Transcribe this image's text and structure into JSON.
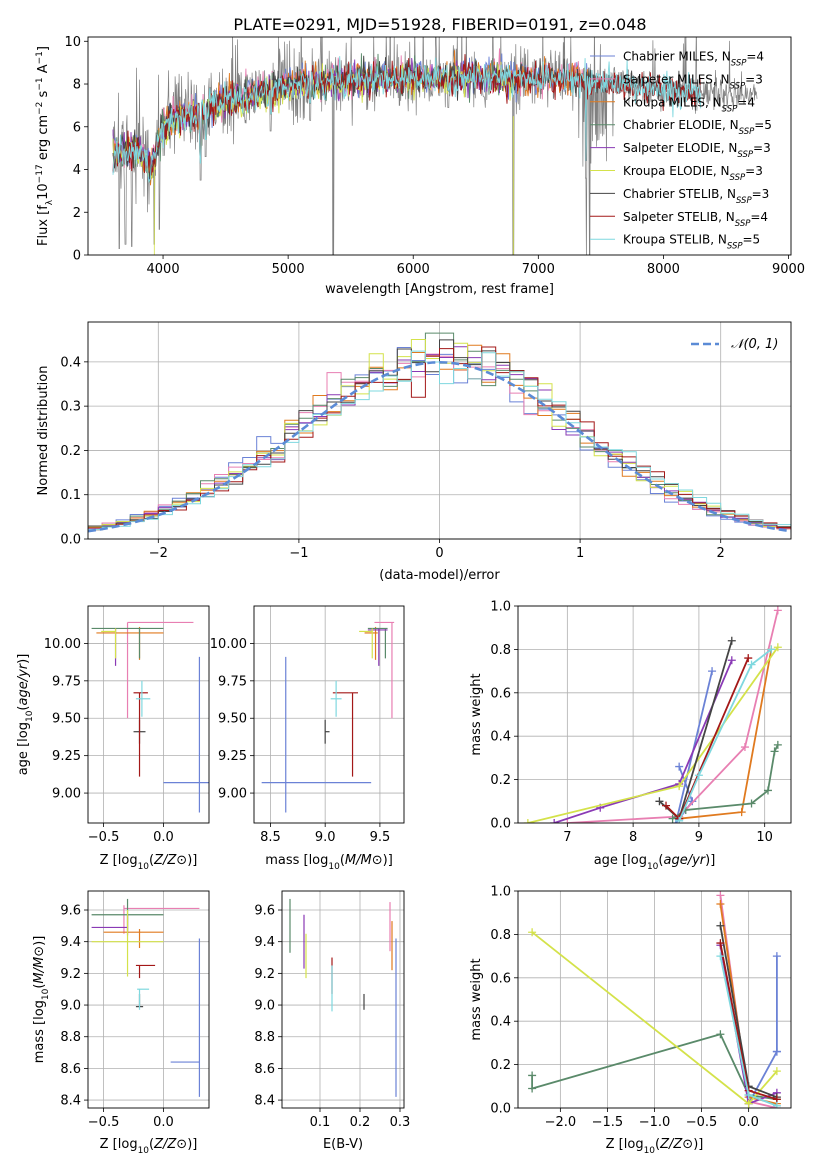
{
  "figure_title": "PLATE=0291, MJD=51928, FIBERID=0191, z=0.048",
  "colors": {
    "chabrier_miles": "#6b82d6",
    "salpeter_miles": "#e87fb2",
    "kroupa_miles": "#e07a1f",
    "chabrier_elodie": "#5a8a6a",
    "salpeter_elodie": "#8a3ab5",
    "kroupa_elodie": "#d4e24a",
    "chabrier_stelib": "#444444",
    "salpeter_stelib": "#a31818",
    "kroupa_stelib": "#7fd8df",
    "data": "#808080",
    "grid": "#b0b0b0",
    "gauss": "#5b8bd6"
  },
  "chart_data": [
    {
      "id": "spectrum",
      "type": "line",
      "xlabel": "wavelength [Angstrom, rest frame]",
      "ylabel": "Flux [f_λ10^-17 erg cm^-2 s^-1 A^-1]",
      "xlim": [
        3400,
        9020
      ],
      "ylim": [
        0,
        10.2
      ],
      "xticks": [
        4000,
        5000,
        6000,
        7000,
        8000,
        9000
      ],
      "yticks": [
        0,
        2,
        4,
        6,
        8,
        10
      ],
      "grid": false,
      "legend_position": "right",
      "legend": [
        {
          "label": "Chabrier MILES, N",
          "sub": "SSP",
          "post": "=4",
          "color_key": "chabrier_miles"
        },
        {
          "label": "Salpeter MILES, N",
          "sub": "SSP",
          "post": "=3",
          "color_key": "salpeter_miles"
        },
        {
          "label": "Kroupa MILES, N",
          "sub": "SSP",
          "post": "=4",
          "color_key": "kroupa_miles"
        },
        {
          "label": "Chabrier ELODIE, N",
          "sub": "SSP",
          "post": "=5",
          "color_key": "chabrier_elodie"
        },
        {
          "label": "Salpeter ELODIE, N",
          "sub": "SSP",
          "post": "=3",
          "color_key": "salpeter_elodie"
        },
        {
          "label": "Kroupa ELODIE, N",
          "sub": "SSP",
          "post": "=3",
          "color_key": "kroupa_elodie"
        },
        {
          "label": "Chabrier STELIB, N",
          "sub": "SSP",
          "post": "=3",
          "color_key": "chabrier_stelib"
        },
        {
          "label": "Salpeter STELIB, N",
          "sub": "SSP",
          "post": "=4",
          "color_key": "salpeter_stelib"
        },
        {
          "label": "Kroupa STELIB, N",
          "sub": "SSP",
          "post": "=5",
          "color_key": "kroupa_stelib"
        }
      ],
      "continuum_x": [
        3600,
        3700,
        3800,
        3900,
        4000,
        4100,
        4300,
        4500,
        5000,
        5500,
        6000,
        6500,
        7000,
        7400,
        7800,
        8200,
        8700
      ],
      "continuum_y": [
        4.8,
        4.9,
        5.0,
        4.0,
        6.0,
        6.4,
        6.6,
        7.2,
        7.9,
        8.2,
        8.3,
        8.3,
        8.2,
        8.2,
        7.9,
        7.6,
        7.6
      ],
      "model_end": {
        "miles": 7400,
        "elodie": 6800,
        "stelib": 8300
      },
      "dips": [
        [
          3650,
          0.3
        ],
        [
          3700,
          0.5
        ],
        [
          3750,
          0.4
        ],
        [
          3930,
          0.5
        ],
        [
          3970,
          1.2
        ],
        [
          4300,
          3.5
        ],
        [
          4340,
          4.6
        ],
        [
          4861,
          5.8
        ],
        [
          5175,
          6.3
        ],
        [
          5360,
          0
        ],
        [
          5890,
          7.0
        ],
        [
          6280,
          6.9
        ],
        [
          6563,
          7.4
        ],
        [
          6800,
          0
        ],
        [
          7380,
          3.6
        ],
        [
          7410,
          0
        ]
      ]
    },
    {
      "id": "residual_hist",
      "type": "step",
      "xlabel": "(data-model)/error",
      "ylabel": "Normed distribution",
      "xlim": [
        -2.5,
        2.5
      ],
      "ylim": [
        0,
        0.49
      ],
      "xticks": [
        -2,
        -1,
        0,
        1,
        2
      ],
      "yticks": [
        0.0,
        0.1,
        0.2,
        0.3,
        0.4
      ],
      "grid": true,
      "bin_width": 0.1,
      "gauss_legend": "𝒩(0, 1)",
      "legend_position": "top-right"
    },
    {
      "id": "age_vs_Z",
      "type": "errorbar",
      "xlabel": "Z [log10(Z/Z⊙)]",
      "ylabel": "age  [log10(age/yr)]",
      "xlim": [
        -0.63,
        0.38
      ],
      "ylim": [
        8.8,
        10.25
      ],
      "xticks": [
        -0.5,
        0.0
      ],
      "yticks": [
        9.0,
        9.25,
        9.5,
        9.75,
        10.0
      ],
      "grid": true,
      "points": [
        {
          "x": 0.3,
          "y": 9.07,
          "xerr": [
            0.3,
            0.3
          ],
          "yerr": [
            0.2,
            0.84
          ],
          "color_key": "chabrier_miles"
        },
        {
          "x": -0.3,
          "y": 10.14,
          "xerr": [
            0.0,
            0.55
          ],
          "yerr": [
            0.64,
            0.0
          ],
          "color_key": "salpeter_miles"
        },
        {
          "x": -0.2,
          "y": 10.07,
          "xerr": [
            0.36,
            0.2
          ],
          "yerr": [
            0.18,
            0.04
          ],
          "color_key": "kroupa_miles"
        },
        {
          "x": -0.2,
          "y": 10.1,
          "xerr": [
            0.4,
            0.2
          ],
          "yerr": [
            0.2,
            0.0
          ],
          "color_key": "chabrier_elodie"
        },
        {
          "x": -0.4,
          "y": 10.09,
          "xerr": [
            0.0,
            0.0
          ],
          "yerr": [
            0.24,
            0.01
          ],
          "color_key": "salpeter_elodie"
        },
        {
          "x": -0.4,
          "y": 10.08,
          "xerr": [
            0.12,
            0.0
          ],
          "yerr": [
            0.18,
            0.02
          ],
          "color_key": "kroupa_elodie"
        },
        {
          "x": -0.2,
          "y": 9.41,
          "xerr": [
            0.05,
            0.05
          ],
          "yerr": [
            0.08,
            0.08
          ],
          "color_key": "chabrier_stelib"
        },
        {
          "x": -0.2,
          "y": 9.67,
          "xerr": [
            0.05,
            0.07
          ],
          "yerr": [
            0.56,
            0.0
          ],
          "color_key": "salpeter_stelib"
        },
        {
          "x": -0.18,
          "y": 9.63,
          "xerr": [
            0.05,
            0.07
          ],
          "yerr": [
            0.12,
            0.12
          ],
          "color_key": "kroupa_stelib"
        }
      ]
    },
    {
      "id": "age_vs_mass",
      "type": "errorbar",
      "xlabel": "mass [log10(M/M⊙)]",
      "ylabel": "",
      "xlim": [
        8.35,
        9.72
      ],
      "ylim": [
        8.8,
        10.25
      ],
      "xticks": [
        8.5,
        9.0,
        9.5
      ],
      "yticks": [
        9.0,
        9.25,
        9.5,
        9.75,
        10.0
      ],
      "grid": true,
      "points": [
        {
          "x": 8.64,
          "y": 9.07,
          "xerr": [
            0.22,
            0.78
          ],
          "yerr": [
            0.2,
            0.84
          ],
          "color_key": "chabrier_miles"
        },
        {
          "x": 9.61,
          "y": 10.14,
          "xerr": [
            0.16,
            0.02
          ],
          "yerr": [
            0.64,
            0.0
          ],
          "color_key": "salpeter_miles"
        },
        {
          "x": 9.46,
          "y": 10.07,
          "xerr": [
            0.1,
            0.02
          ],
          "yerr": [
            0.18,
            0.04
          ],
          "color_key": "kroupa_miles"
        },
        {
          "x": 9.55,
          "y": 10.1,
          "xerr": [
            0.16,
            0.02
          ],
          "yerr": [
            0.2,
            0.0
          ],
          "color_key": "chabrier_elodie"
        },
        {
          "x": 9.49,
          "y": 10.09,
          "xerr": [
            0.1,
            0.08
          ],
          "yerr": [
            0.24,
            0.01
          ],
          "color_key": "salpeter_elodie"
        },
        {
          "x": 9.43,
          "y": 10.08,
          "xerr": [
            0.12,
            0.0
          ],
          "yerr": [
            0.18,
            0.02
          ],
          "color_key": "kroupa_elodie"
        },
        {
          "x": 9.0,
          "y": 9.41,
          "xerr": [
            0.0,
            0.04
          ],
          "yerr": [
            0.08,
            0.08
          ],
          "color_key": "chabrier_stelib"
        },
        {
          "x": 9.25,
          "y": 9.67,
          "xerr": [
            0.18,
            0.05
          ],
          "yerr": [
            0.56,
            0.0
          ],
          "color_key": "salpeter_stelib"
        },
        {
          "x": 9.1,
          "y": 9.63,
          "xerr": [
            0.05,
            0.05
          ],
          "yerr": [
            0.12,
            0.12
          ],
          "color_key": "kroupa_stelib"
        }
      ]
    },
    {
      "id": "mass_weight_vs_age",
      "type": "line",
      "xlabel": "age  [log10(age/yr)]",
      "ylabel": "mass weight",
      "xlim": [
        6.25,
        10.4
      ],
      "ylim": [
        0.0,
        1.0
      ],
      "xticks": [
        7,
        8,
        9,
        10
      ],
      "yticks": [
        0.0,
        0.2,
        0.4,
        0.6,
        0.8,
        1.0
      ],
      "grid": true,
      "series": [
        {
          "color_key": "chabrier_miles",
          "x": [
            8.7,
            8.9,
            8.65,
            9.2
          ],
          "y": [
            0.26,
            0.1,
            0.0,
            0.7
          ]
        },
        {
          "color_key": "salpeter_miles",
          "x": [
            7.0,
            8.7,
            9.7,
            10.2
          ],
          "y": [
            0.0,
            0.03,
            0.35,
            0.98
          ]
        },
        {
          "color_key": "kroupa_miles",
          "x": [
            8.7,
            9.65,
            10.1
          ],
          "y": [
            0.02,
            0.05,
            0.8
          ]
        },
        {
          "color_key": "chabrier_elodie",
          "x": [
            8.6,
            8.8,
            9.8,
            10.05,
            10.15,
            10.2
          ],
          "y": [
            0.02,
            0.06,
            0.09,
            0.15,
            0.33,
            0.36
          ]
        },
        {
          "color_key": "salpeter_elodie",
          "x": [
            6.8,
            7.5,
            8.7,
            9.5
          ],
          "y": [
            0.0,
            0.07,
            0.18,
            0.75
          ]
        },
        {
          "color_key": "kroupa_elodie",
          "x": [
            6.4,
            8.7,
            10.2
          ],
          "y": [
            0.0,
            0.17,
            0.81
          ]
        },
        {
          "color_key": "chabrier_stelib",
          "x": [
            8.4,
            8.7,
            9.5
          ],
          "y": [
            0.1,
            0.02,
            0.84
          ]
        },
        {
          "color_key": "salpeter_stelib",
          "x": [
            8.5,
            8.7,
            9.75
          ],
          "y": [
            0.08,
            0.02,
            0.76
          ]
        },
        {
          "color_key": "kroupa_stelib",
          "x": [
            8.7,
            9.0,
            9.8,
            10.1
          ],
          "y": [
            0.01,
            0.22,
            0.73,
            0.8
          ]
        }
      ]
    },
    {
      "id": "mass_vs_Z",
      "type": "errorbar",
      "xlabel": "Z [log10(Z/Z⊙)]",
      "ylabel": "mass [log10(M/M⊙)]",
      "xlim": [
        -0.63,
        0.38
      ],
      "ylim": [
        8.35,
        9.72
      ],
      "xticks": [
        -0.5,
        0.0
      ],
      "yticks": [
        8.4,
        8.6,
        8.8,
        9.0,
        9.2,
        9.4,
        9.6
      ],
      "grid": true,
      "points": [
        {
          "x": 0.3,
          "y": 8.64,
          "xerr": [
            0.24,
            0.0
          ],
          "yerr": [
            0.22,
            0.78
          ],
          "color_key": "chabrier_miles"
        },
        {
          "x": -0.33,
          "y": 9.61,
          "xerr": [
            0.0,
            0.63
          ],
          "yerr": [
            0.16,
            0.02
          ],
          "color_key": "salpeter_miles"
        },
        {
          "x": -0.2,
          "y": 9.46,
          "xerr": [
            0.3,
            0.2
          ],
          "yerr": [
            0.1,
            0.02
          ],
          "color_key": "kroupa_miles"
        },
        {
          "x": -0.3,
          "y": 9.57,
          "xerr": [
            0.3,
            0.3
          ],
          "yerr": [
            0.1,
            0.1
          ],
          "color_key": "chabrier_elodie"
        },
        {
          "x": -0.3,
          "y": 9.49,
          "xerr": [
            0.3,
            0.0
          ],
          "yerr": [
            0.05,
            0.08
          ],
          "color_key": "salpeter_elodie"
        },
        {
          "x": -0.3,
          "y": 9.4,
          "xerr": [
            0.3,
            0.3
          ],
          "yerr": [
            0.22,
            0.2
          ],
          "color_key": "kroupa_elodie"
        },
        {
          "x": -0.2,
          "y": 8.99,
          "xerr": [
            0.03,
            0.03
          ],
          "yerr": [
            0.0,
            0.08
          ],
          "color_key": "chabrier_stelib"
        },
        {
          "x": -0.2,
          "y": 9.25,
          "xerr": [
            0.03,
            0.13
          ],
          "yerr": [
            0.08,
            0.0
          ],
          "color_key": "salpeter_stelib"
        },
        {
          "x": -0.2,
          "y": 9.1,
          "xerr": [
            0.02,
            0.08
          ],
          "yerr": [
            0.13,
            0.0
          ],
          "color_key": "kroupa_stelib"
        }
      ]
    },
    {
      "id": "mass_vs_ebv",
      "type": "errorbar",
      "xlabel": "E(B-V)",
      "ylabel": "",
      "xlim": [
        0.005,
        0.31
      ],
      "ylim": [
        8.35,
        9.72
      ],
      "xticks": [
        0.1,
        0.2,
        0.3
      ],
      "yticks": [
        8.4,
        8.6,
        8.8,
        9.0,
        9.2,
        9.4,
        9.6
      ],
      "grid": true,
      "points": [
        {
          "x": 0.29,
          "y": 8.64,
          "yerr": [
            0.22,
            0.78
          ],
          "color_key": "chabrier_miles"
        },
        {
          "x": 0.275,
          "y": 9.5,
          "yerr": [
            0.16,
            0.15
          ],
          "color_key": "salpeter_miles"
        },
        {
          "x": 0.28,
          "y": 9.4,
          "yerr": [
            0.18,
            0.13
          ],
          "color_key": "kroupa_miles"
        },
        {
          "x": 0.025,
          "y": 9.5,
          "yerr": [
            0.17,
            0.17
          ],
          "color_key": "chabrier_elodie"
        },
        {
          "x": 0.06,
          "y": 9.45,
          "yerr": [
            0.22,
            0.12
          ],
          "color_key": "salpeter_elodie"
        },
        {
          "x": 0.065,
          "y": 9.3,
          "yerr": [
            0.13,
            0.15
          ],
          "color_key": "kroupa_elodie"
        },
        {
          "x": 0.21,
          "y": 9.02,
          "yerr": [
            0.05,
            0.05
          ],
          "color_key": "chabrier_stelib"
        },
        {
          "x": 0.13,
          "y": 9.2,
          "yerr": [
            0.13,
            0.1
          ],
          "color_key": "salpeter_stelib"
        },
        {
          "x": 0.13,
          "y": 9.1,
          "yerr": [
            0.14,
            0.15
          ],
          "color_key": "kroupa_stelib"
        }
      ]
    },
    {
      "id": "mass_weight_vs_Z",
      "type": "line",
      "xlabel": "Z [log10(Z/Z⊙)]",
      "ylabel": "mass weight",
      "xlim": [
        -2.45,
        0.45
      ],
      "ylim": [
        0.0,
        1.0
      ],
      "xticks": [
        -2.0,
        -1.5,
        -1.0,
        -0.5,
        0.0
      ],
      "yticks": [
        0.0,
        0.2,
        0.4,
        0.6,
        0.8,
        1.0
      ],
      "grid": true,
      "series": [
        {
          "color_key": "chabrier_miles",
          "x": [
            0.3,
            0.3,
            0.0,
            0.3
          ],
          "y": [
            0.7,
            0.26,
            0.02,
            0.26
          ]
        },
        {
          "color_key": "salpeter_miles",
          "x": [
            -0.3,
            0.0,
            0.3
          ],
          "y": [
            0.98,
            0.03,
            0.0
          ]
        },
        {
          "color_key": "kroupa_miles",
          "x": [
            -0.3,
            0.0,
            0.3
          ],
          "y": [
            0.94,
            0.05,
            0.02
          ]
        },
        {
          "color_key": "chabrier_elodie",
          "x": [
            -2.3,
            -2.3,
            -0.3,
            0.0,
            0.3
          ],
          "y": [
            0.15,
            0.09,
            0.34,
            0.06,
            0.04
          ]
        },
        {
          "color_key": "salpeter_elodie",
          "x": [
            -0.3,
            0.0,
            0.3
          ],
          "y": [
            0.75,
            0.02,
            0.07
          ]
        },
        {
          "color_key": "kroupa_elodie",
          "x": [
            -2.3,
            0.0,
            0.3
          ],
          "y": [
            0.81,
            0.02,
            0.17
          ]
        },
        {
          "color_key": "chabrier_stelib",
          "x": [
            -0.3,
            0.0,
            0.3
          ],
          "y": [
            0.84,
            0.1,
            0.05
          ]
        },
        {
          "color_key": "salpeter_stelib",
          "x": [
            -0.3,
            0.0,
            0.3
          ],
          "y": [
            0.76,
            0.08,
            0.04
          ]
        },
        {
          "color_key": "kroupa_stelib",
          "x": [
            -0.3,
            0.0,
            0.3
          ],
          "y": [
            0.7,
            0.06,
            0.01
          ]
        }
      ]
    }
  ]
}
